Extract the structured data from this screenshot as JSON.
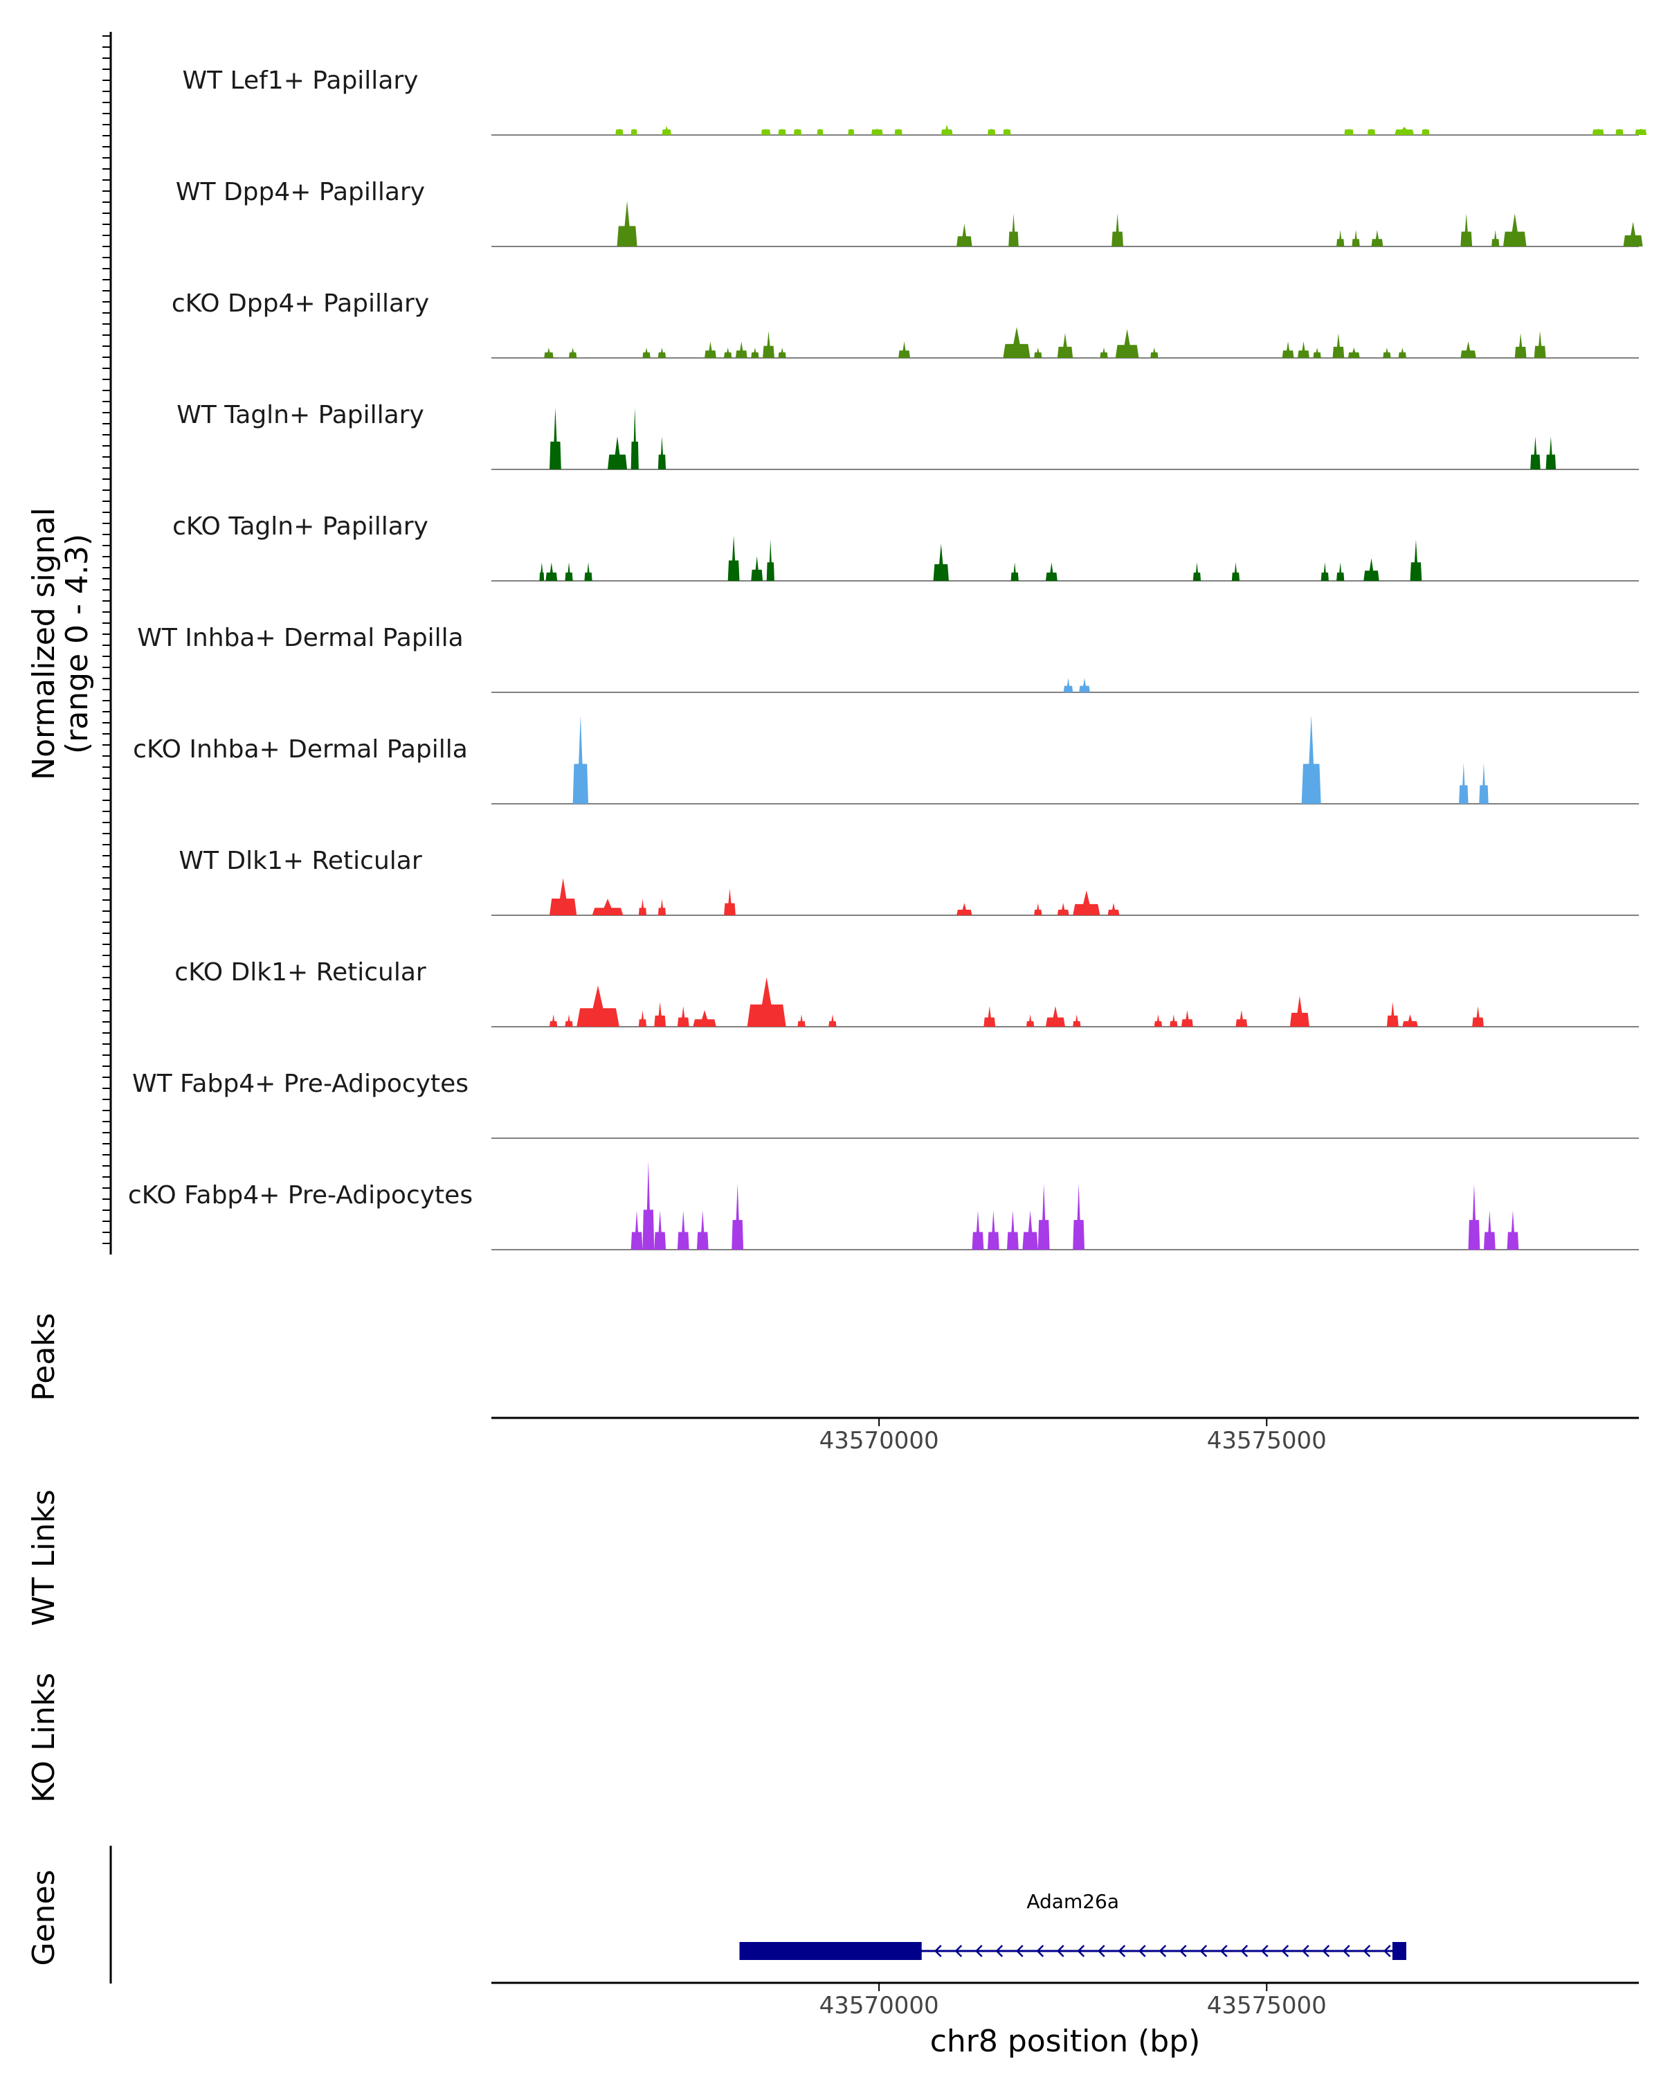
{
  "chart_data": {
    "type": "area",
    "title": "",
    "chromosome": "chr8",
    "xlabel": "chr8 position (bp)",
    "xlim": [
      43565000,
      43579800
    ],
    "x_ticks": [
      43570000,
      43575000
    ],
    "x_tick_labels": [
      "43570000",
      "43575000"
    ],
    "signal_axis_label": [
      "Normalized signal",
      "(range 0 - 4.3)"
    ],
    "ylim": [
      0,
      4.3
    ],
    "tracks": [
      {
        "name": "WT Lef1+ Papillary",
        "color": "#7CCD00",
        "peaks": [
          [
            43566600,
            43566700,
            0.3
          ],
          [
            43566800,
            43566880,
            0.3
          ],
          [
            43567200,
            43567320,
            0.45
          ],
          [
            43568480,
            43568600,
            0.3
          ],
          [
            43568700,
            43568800,
            0.3
          ],
          [
            43568900,
            43569000,
            0.3
          ],
          [
            43569200,
            43569280,
            0.3
          ],
          [
            43569600,
            43569680,
            0.3
          ],
          [
            43569900,
            43570050,
            0.3
          ],
          [
            43570200,
            43570300,
            0.3
          ],
          [
            43570800,
            43570950,
            0.5
          ],
          [
            43571400,
            43571500,
            0.3
          ],
          [
            43571600,
            43571700,
            0.3
          ],
          [
            43576000,
            43576120,
            0.3
          ],
          [
            43576300,
            43576400,
            0.3
          ],
          [
            43576650,
            43576900,
            0.4
          ],
          [
            43577000,
            43577100,
            0.3
          ],
          [
            43579200,
            43579350,
            0.3
          ],
          [
            43579500,
            43579600,
            0.3
          ],
          [
            43579750,
            43579900,
            0.3
          ]
        ]
      },
      {
        "name": "WT Dpp4+ Papillary",
        "color": "#4E8B0E",
        "peaks": [
          [
            43566620,
            43566880,
            2.2
          ],
          [
            43571000,
            43571200,
            1.1
          ],
          [
            43571670,
            43571800,
            1.6
          ],
          [
            43573000,
            43573150,
            1.6
          ],
          [
            43575900,
            43576000,
            0.8
          ],
          [
            43576100,
            43576200,
            0.8
          ],
          [
            43576350,
            43576500,
            0.8
          ],
          [
            43577500,
            43577650,
            1.6
          ],
          [
            43577900,
            43578000,
            0.8
          ],
          [
            43578050,
            43578350,
            1.6
          ],
          [
            43579600,
            43579850,
            1.2
          ]
        ]
      },
      {
        "name": "cKO Dpp4+ Papillary",
        "color": "#4E8B0E",
        "peaks": [
          [
            43565680,
            43565800,
            0.5
          ],
          [
            43566000,
            43566100,
            0.5
          ],
          [
            43566950,
            43567050,
            0.5
          ],
          [
            43567150,
            43567250,
            0.5
          ],
          [
            43567750,
            43567900,
            0.8
          ],
          [
            43568000,
            43568100,
            0.5
          ],
          [
            43568150,
            43568300,
            0.8
          ],
          [
            43568350,
            43568450,
            0.5
          ],
          [
            43568500,
            43568650,
            1.3
          ],
          [
            43568700,
            43568800,
            0.5
          ],
          [
            43570250,
            43570400,
            0.8
          ],
          [
            43571600,
            43571950,
            1.5
          ],
          [
            43572000,
            43572100,
            0.5
          ],
          [
            43572300,
            43572500,
            1.2
          ],
          [
            43572850,
            43572950,
            0.5
          ],
          [
            43573050,
            43573350,
            1.4
          ],
          [
            43573500,
            43573600,
            0.5
          ],
          [
            43575200,
            43575350,
            0.8
          ],
          [
            43575400,
            43575550,
            0.8
          ],
          [
            43575600,
            43575700,
            0.5
          ],
          [
            43575850,
            43576000,
            1.2
          ],
          [
            43576050,
            43576200,
            0.5
          ],
          [
            43576500,
            43576600,
            0.5
          ],
          [
            43576700,
            43576800,
            0.5
          ],
          [
            43577500,
            43577700,
            0.8
          ],
          [
            43578200,
            43578350,
            1.2
          ],
          [
            43578450,
            43578600,
            1.3
          ]
        ]
      },
      {
        "name": "WT Tagln+ Papillary",
        "color": "#006400",
        "peaks": [
          [
            43565750,
            43565900,
            3.0
          ],
          [
            43566500,
            43566750,
            1.6
          ],
          [
            43566800,
            43566900,
            3.0
          ],
          [
            43567150,
            43567250,
            1.6
          ],
          [
            43578400,
            43578530,
            1.6
          ],
          [
            43578600,
            43578730,
            1.6
          ]
        ]
      },
      {
        "name": "cKO Tagln+ Papillary",
        "color": "#006400",
        "peaks": [
          [
            43565620,
            43565680,
            0.9
          ],
          [
            43565700,
            43565850,
            0.9
          ],
          [
            43565950,
            43566050,
            0.9
          ],
          [
            43566200,
            43566300,
            0.9
          ],
          [
            43568050,
            43568200,
            2.2
          ],
          [
            43568350,
            43568500,
            1.2
          ],
          [
            43568550,
            43568650,
            2.0
          ],
          [
            43570700,
            43570900,
            1.8
          ],
          [
            43571700,
            43571800,
            0.9
          ],
          [
            43572150,
            43572300,
            0.9
          ],
          [
            43574050,
            43574150,
            0.9
          ],
          [
            43574550,
            43574650,
            0.9
          ],
          [
            43575700,
            43575800,
            0.9
          ],
          [
            43575900,
            43576000,
            0.9
          ],
          [
            43576250,
            43576450,
            1.1
          ],
          [
            43576850,
            43577000,
            2.0
          ]
        ]
      },
      {
        "name": "WT Inhba+ Dermal Papilla",
        "color": "#5BA8E8",
        "peaks": [
          [
            43572380,
            43572500,
            0.7
          ],
          [
            43572580,
            43572720,
            0.7
          ]
        ]
      },
      {
        "name": "cKO Inhba+ Dermal Papilla",
        "color": "#5BA8E8",
        "peaks": [
          [
            43566050,
            43566250,
            4.3
          ],
          [
            43575450,
            43575700,
            4.3
          ],
          [
            43577480,
            43577600,
            2.0
          ],
          [
            43577740,
            43577860,
            2.0
          ]
        ]
      },
      {
        "name": "WT Dlk1+ Reticular",
        "color": "#F42F2F",
        "peaks": [
          [
            43565750,
            43566100,
            1.8
          ],
          [
            43566300,
            43566700,
            0.8
          ],
          [
            43566900,
            43567000,
            0.8
          ],
          [
            43567150,
            43567250,
            0.8
          ],
          [
            43568000,
            43568150,
            1.3
          ],
          [
            43571000,
            43571200,
            0.6
          ],
          [
            43572000,
            43572100,
            0.6
          ],
          [
            43572300,
            43572450,
            0.6
          ],
          [
            43572500,
            43572850,
            1.2
          ],
          [
            43572950,
            43573100,
            0.6
          ]
        ]
      },
      {
        "name": "cKO Dlk1+ Reticular",
        "color": "#F42F2F",
        "peaks": [
          [
            43565750,
            43565850,
            0.6
          ],
          [
            43565950,
            43566050,
            0.6
          ],
          [
            43566100,
            43566650,
            2.0
          ],
          [
            43566900,
            43567000,
            0.8
          ],
          [
            43567100,
            43567250,
            1.2
          ],
          [
            43567400,
            43567550,
            1.0
          ],
          [
            43567600,
            43567900,
            0.8
          ],
          [
            43568300,
            43568800,
            2.4
          ],
          [
            43568950,
            43569050,
            0.6
          ],
          [
            43569350,
            43569450,
            0.6
          ],
          [
            43571350,
            43571500,
            1.0
          ],
          [
            43571900,
            43572000,
            0.6
          ],
          [
            43572150,
            43572400,
            1.0
          ],
          [
            43572500,
            43572600,
            0.6
          ],
          [
            43573550,
            43573650,
            0.6
          ],
          [
            43573750,
            43573850,
            0.6
          ],
          [
            43573900,
            43574050,
            0.8
          ],
          [
            43574600,
            43574750,
            0.8
          ],
          [
            43575300,
            43575550,
            1.5
          ],
          [
            43576550,
            43576700,
            1.2
          ],
          [
            43576750,
            43576950,
            0.6
          ],
          [
            43577650,
            43577800,
            1.0
          ]
        ]
      },
      {
        "name": "WT Fabp4+ Pre-Adipocytes",
        "color": "#A83BE8",
        "peaks": []
      },
      {
        "name": "cKO Fabp4+ Pre-Adipocytes",
        "color": "#A83BE8",
        "peaks": [
          [
            43566800,
            43566950,
            1.9
          ],
          [
            43566950,
            43567100,
            4.3
          ],
          [
            43567100,
            43567250,
            1.9
          ],
          [
            43567400,
            43567550,
            1.9
          ],
          [
            43567650,
            43567800,
            1.9
          ],
          [
            43568100,
            43568250,
            3.2
          ],
          [
            43571200,
            43571350,
            1.9
          ],
          [
            43571400,
            43571550,
            1.9
          ],
          [
            43571650,
            43571800,
            1.9
          ],
          [
            43571850,
            43572050,
            1.9
          ],
          [
            43572050,
            43572200,
            3.2
          ],
          [
            43572500,
            43572650,
            3.2
          ],
          [
            43577600,
            43577750,
            3.2
          ],
          [
            43577800,
            43577950,
            1.9
          ],
          [
            43578100,
            43578250,
            1.9
          ]
        ]
      }
    ],
    "side_panels": [
      {
        "label": "Peaks"
      },
      {
        "label": "WT Links"
      },
      {
        "label": "KO Links"
      },
      {
        "label": "Genes"
      }
    ],
    "genes": [
      {
        "name": "Adam26a",
        "start": 43568200,
        "end": 43576800,
        "strand": "-",
        "coding_start": 43568200,
        "coding_end": 43570550
      }
    ]
  }
}
